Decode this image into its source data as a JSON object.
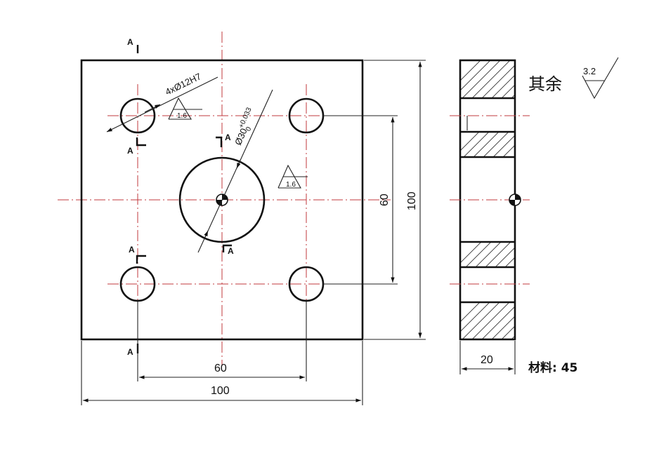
{
  "dimensions": {
    "overall_width": "100",
    "overall_height": "100",
    "hole_spacing_horizontal": "60",
    "hole_spacing_vertical": "60",
    "thickness": "20"
  },
  "annotations": {
    "holes": "4xØ12H7",
    "center_bore": "Ø30",
    "center_bore_tol_upper": "+0.033",
    "center_bore_tol_lower": "0",
    "roughness_holes": "1.6",
    "roughness_bore": "1.6",
    "roughness_rest_label": "其余",
    "roughness_rest_value": "3.2",
    "section_mark": "A",
    "material": "材料: 45"
  },
  "colors": {
    "outline": "#111111",
    "centerline": "#c0393e"
  }
}
